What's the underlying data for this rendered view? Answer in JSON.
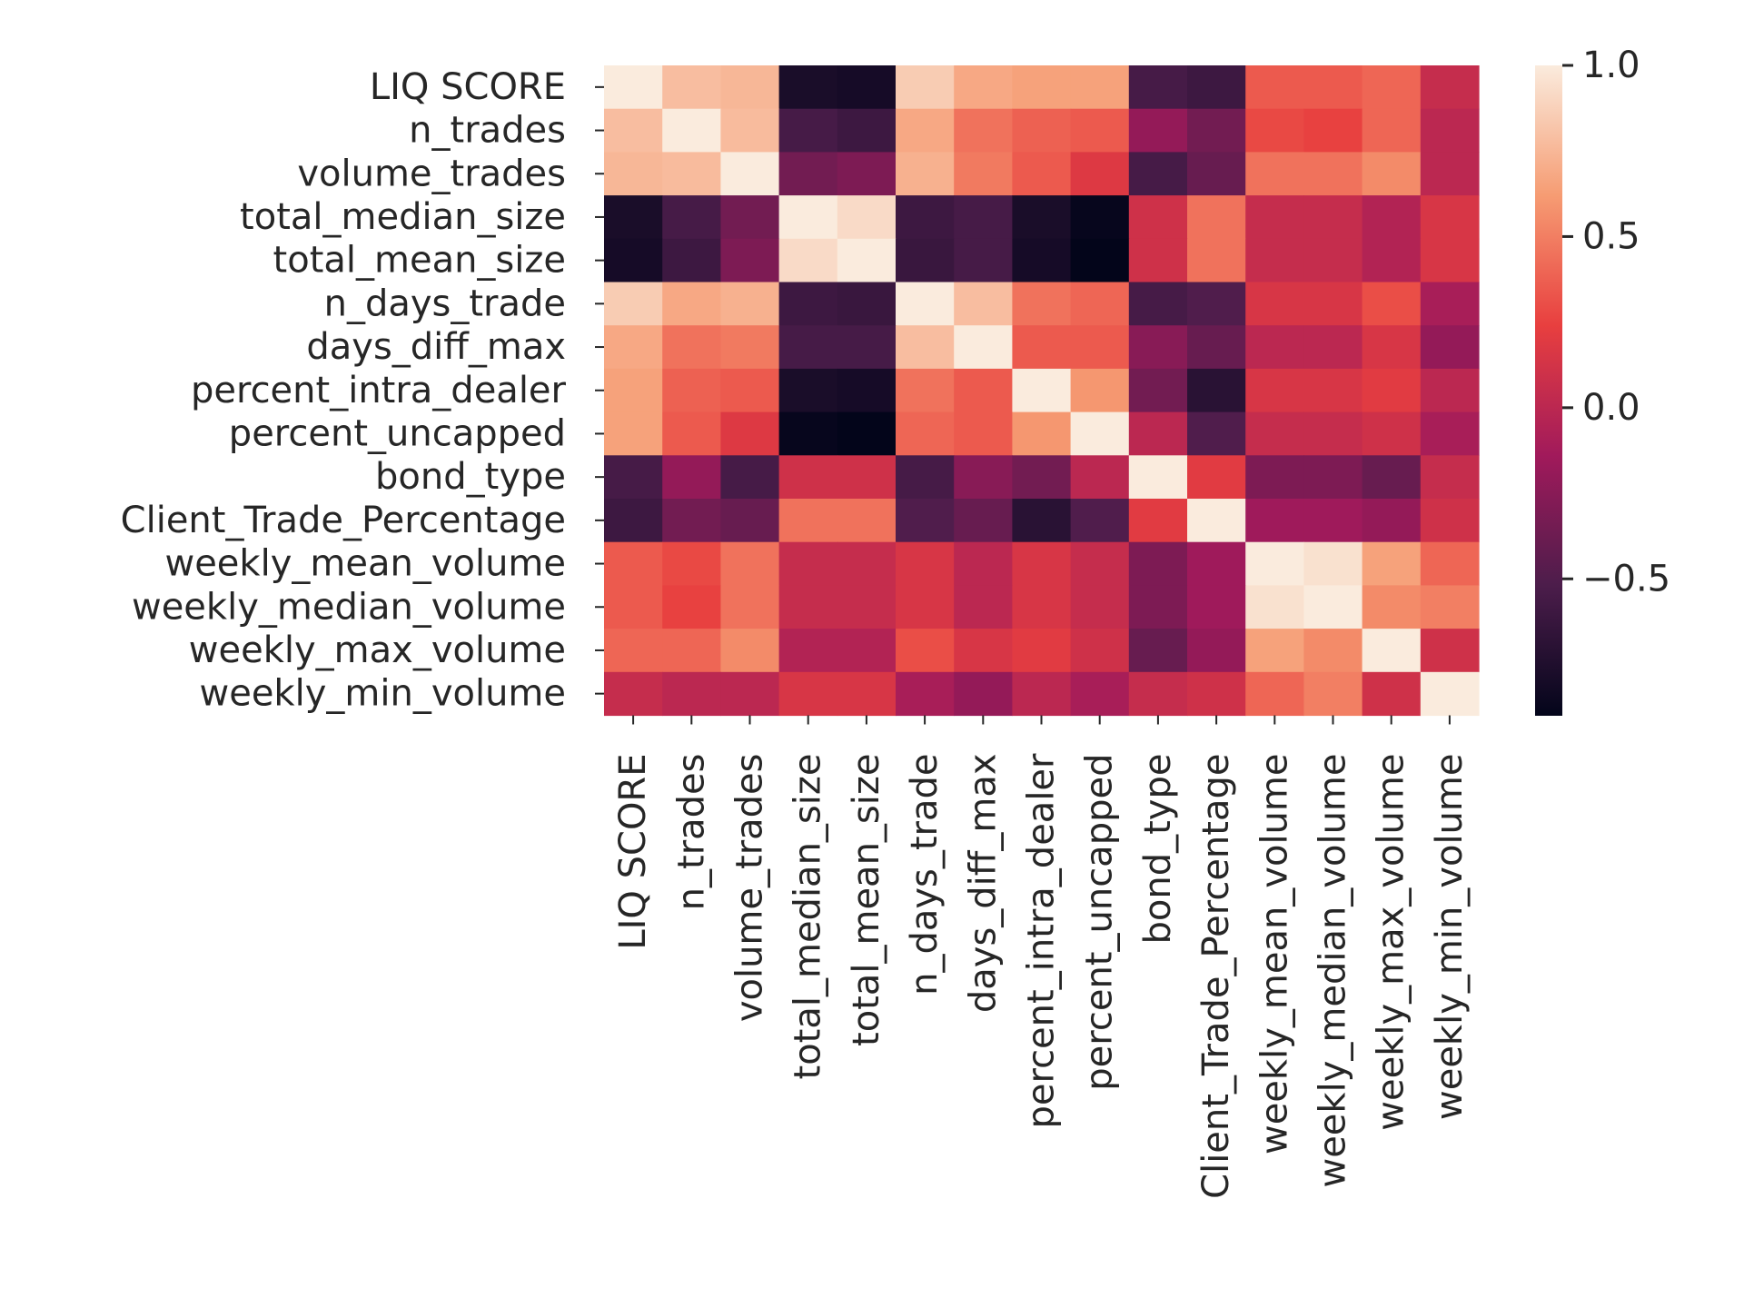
{
  "chart_data": {
    "type": "heatmap",
    "title": "",
    "xlabel": "",
    "ylabel": "",
    "labels": [
      "LIQ SCORE",
      "n_trades",
      "volume_trades",
      "total_median_size",
      "total_mean_size",
      "n_days_trade",
      "days_diff_max",
      "percent_intra_dealer",
      "percent_uncapped",
      "bond_type",
      "Client_Trade_Percentage",
      "weekly_mean_volume",
      "weekly_median_volume",
      "weekly_max_volume",
      "weekly_min_volume"
    ],
    "matrix": [
      [
        1.0,
        0.78,
        0.75,
        -0.78,
        -0.8,
        0.85,
        0.68,
        0.65,
        0.65,
        -0.55,
        -0.6,
        0.35,
        0.35,
        0.4,
        0.05
      ],
      [
        0.78,
        1.0,
        0.77,
        -0.55,
        -0.6,
        0.68,
        0.45,
        0.38,
        0.35,
        -0.2,
        -0.35,
        0.28,
        0.25,
        0.4,
        0.0
      ],
      [
        0.75,
        0.77,
        1.0,
        -0.35,
        -0.3,
        0.72,
        0.48,
        0.35,
        0.18,
        -0.55,
        -0.4,
        0.45,
        0.45,
        0.55,
        0.0
      ],
      [
        -0.78,
        -0.55,
        -0.35,
        1.0,
        0.92,
        -0.6,
        -0.55,
        -0.78,
        -0.88,
        0.1,
        0.45,
        0.05,
        0.05,
        -0.05,
        0.15
      ],
      [
        -0.8,
        -0.6,
        -0.3,
        0.92,
        1.0,
        -0.62,
        -0.55,
        -0.8,
        -0.9,
        0.1,
        0.45,
        0.05,
        0.05,
        -0.05,
        0.15
      ],
      [
        0.85,
        0.68,
        0.72,
        -0.6,
        -0.62,
        1.0,
        0.78,
        0.45,
        0.4,
        -0.55,
        -0.5,
        0.15,
        0.15,
        0.3,
        -0.1
      ],
      [
        0.68,
        0.45,
        0.48,
        -0.55,
        -0.55,
        0.78,
        1.0,
        0.35,
        0.35,
        -0.25,
        -0.4,
        0.0,
        0.0,
        0.15,
        -0.2
      ],
      [
        0.65,
        0.38,
        0.35,
        -0.78,
        -0.8,
        0.45,
        0.35,
        1.0,
        0.6,
        -0.35,
        -0.7,
        0.15,
        0.15,
        0.2,
        0.0
      ],
      [
        0.65,
        0.35,
        0.18,
        -0.88,
        -0.9,
        0.4,
        0.35,
        0.6,
        1.0,
        0.0,
        -0.5,
        0.05,
        0.05,
        0.1,
        -0.1
      ],
      [
        -0.55,
        -0.2,
        -0.55,
        0.1,
        0.1,
        -0.55,
        -0.25,
        -0.35,
        0.0,
        1.0,
        0.2,
        -0.3,
        -0.3,
        -0.4,
        0.05
      ],
      [
        -0.6,
        -0.35,
        -0.4,
        0.45,
        0.45,
        -0.5,
        -0.4,
        -0.7,
        -0.5,
        0.2,
        1.0,
        -0.15,
        -0.15,
        -0.2,
        0.1
      ],
      [
        0.35,
        0.28,
        0.45,
        0.05,
        0.05,
        0.15,
        0.0,
        0.15,
        0.05,
        -0.3,
        -0.15,
        1.0,
        0.95,
        0.65,
        0.4
      ],
      [
        0.35,
        0.25,
        0.45,
        0.05,
        0.05,
        0.15,
        0.0,
        0.15,
        0.05,
        -0.3,
        -0.15,
        0.95,
        1.0,
        0.55,
        0.5
      ],
      [
        0.4,
        0.4,
        0.55,
        -0.05,
        -0.05,
        0.3,
        0.15,
        0.2,
        0.1,
        -0.4,
        -0.2,
        0.65,
        0.55,
        1.0,
        0.1
      ],
      [
        0.05,
        0.0,
        0.0,
        0.15,
        0.15,
        -0.1,
        -0.2,
        0.0,
        -0.1,
        0.05,
        0.1,
        0.4,
        0.5,
        0.1,
        1.0
      ]
    ],
    "colorbar": {
      "vmin": -0.9,
      "vmax": 1.0,
      "ticks": [
        1.0,
        0.5,
        0.0,
        -0.5
      ],
      "tick_labels": [
        "1.0",
        "0.5",
        "0.0",
        "−0.5"
      ],
      "colormap": "rocket"
    },
    "grid": false,
    "legend": "colorbar-right"
  }
}
